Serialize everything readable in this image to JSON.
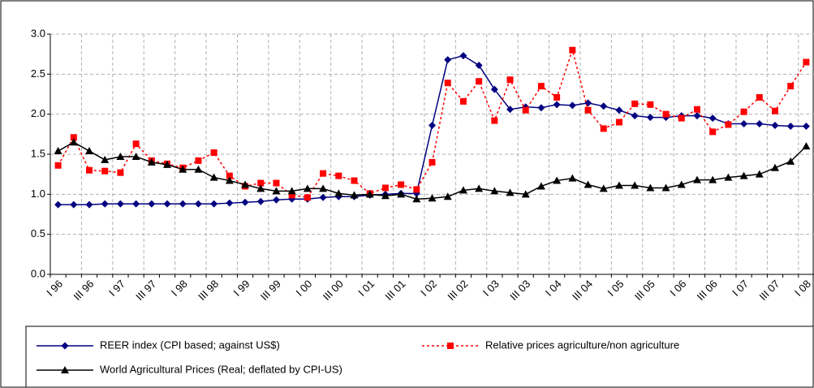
{
  "chart_data": {
    "type": "line",
    "categories": [
      "I 96",
      null,
      "III 96",
      null,
      "I 97",
      null,
      "III 97",
      null,
      "I 98",
      null,
      "III 98",
      null,
      "I 99",
      null,
      "III 99",
      null,
      "I 00",
      null,
      "III 00",
      null,
      "I 01",
      null,
      "III 01",
      null,
      "I 02",
      null,
      "III 02",
      null,
      "I 03",
      null,
      "III 03",
      null,
      "I 04",
      null,
      "III 04",
      null,
      "I 05",
      null,
      "III 05",
      null,
      "I 06",
      null,
      "III 06",
      null,
      "I 07",
      null,
      "III 07",
      null,
      "I 08"
    ],
    "series": [
      {
        "name": "REER index (CPI based; against US$)",
        "color": "#000080",
        "marker": "diamond",
        "dashed": false,
        "values": [
          0.87,
          0.87,
          0.87,
          0.88,
          0.88,
          0.88,
          0.88,
          0.88,
          0.88,
          0.88,
          0.88,
          0.89,
          0.9,
          0.91,
          0.93,
          0.94,
          0.94,
          0.96,
          0.97,
          0.97,
          0.99,
          1.0,
          1.01,
          1.01,
          1.86,
          2.68,
          2.73,
          2.61,
          2.31,
          2.06,
          2.09,
          2.08,
          2.12,
          2.11,
          2.14,
          2.1,
          2.05,
          1.98,
          1.96,
          1.96,
          1.98,
          1.98,
          1.95,
          1.88,
          1.88,
          1.88,
          1.86,
          1.85,
          1.85
        ]
      },
      {
        "name": "Relative prices agriculture/non agriculture",
        "color": "#ff0000",
        "marker": "square",
        "dashed": true,
        "values": [
          1.36,
          1.71,
          1.3,
          1.29,
          1.27,
          1.63,
          1.42,
          1.38,
          1.33,
          1.42,
          1.52,
          1.23,
          1.1,
          1.14,
          1.14,
          0.99,
          0.96,
          1.26,
          1.23,
          1.17,
          1.01,
          1.08,
          1.12,
          1.06,
          1.4,
          2.39,
          2.16,
          2.41,
          1.92,
          2.43,
          2.05,
          2.35,
          2.21,
          2.8,
          2.05,
          1.82,
          1.9,
          2.13,
          2.12,
          2.0,
          1.95,
          2.06,
          1.78,
          1.87,
          2.03,
          2.21,
          2.04,
          2.35,
          2.65
        ]
      },
      {
        "name": "World Agricultural Prices (Real; deflated by CPI-US)",
        "color": "#000000",
        "marker": "triangle",
        "dashed": false,
        "values": [
          1.54,
          1.65,
          1.54,
          1.43,
          1.47,
          1.47,
          1.4,
          1.37,
          1.31,
          1.31,
          1.21,
          1.17,
          1.12,
          1.07,
          1.04,
          1.04,
          1.07,
          1.07,
          1.01,
          0.99,
          1.0,
          0.98,
          1.0,
          0.94,
          0.95,
          0.97,
          1.05,
          1.07,
          1.04,
          1.02,
          1.0,
          1.1,
          1.17,
          1.2,
          1.12,
          1.07,
          1.11,
          1.11,
          1.08,
          1.08,
          1.12,
          1.18,
          1.18,
          1.21,
          1.23,
          1.25,
          1.33,
          1.41,
          1.6
        ]
      }
    ],
    "ylim": [
      0,
      3
    ],
    "yticks": [
      {
        "value": 0,
        "label": "0.0"
      },
      0.5,
      {
        "value": 1,
        "label": "1.0"
      },
      1.5,
      {
        "value": 2,
        "label": "2.0"
      },
      2.5,
      {
        "value": 3,
        "label": "3.0"
      }
    ],
    "grid": true,
    "legend": "bottom"
  }
}
